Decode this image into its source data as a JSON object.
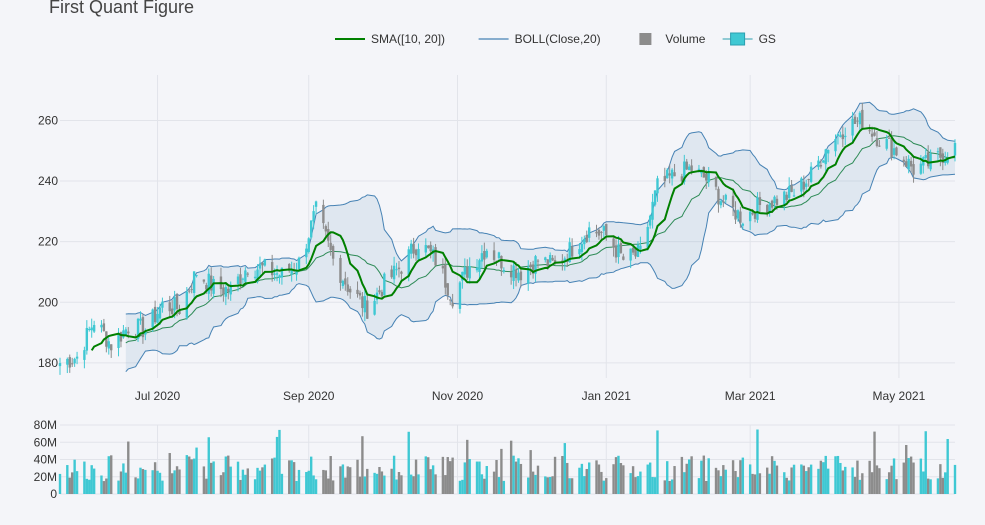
{
  "page": {
    "title": "First Quant Figure"
  },
  "legend": [
    {
      "label": "SMA([10, 20])",
      "color": "#008000",
      "kind": "line"
    },
    {
      "label": "BOLL(Close,20)",
      "color": "#4682b4",
      "kind": "line"
    },
    {
      "label": "Volume",
      "color": "#8c8c8c",
      "kind": "square"
    },
    {
      "label": "GS",
      "color": "#3fc8d3",
      "kind": "candle"
    }
  ],
  "chart_data": [
    {
      "type": "candlestick",
      "name": "GS",
      "colors": {
        "increasing": "#3fc8d3",
        "decreasing": "#8c8c8c",
        "sma": "#008000",
        "boll": "#4682b4",
        "band_fill": "rgba(70,130,180,0.12)"
      },
      "x_ticks": [
        "Jul 2020",
        "Sep 2020",
        "Nov 2020",
        "Jan 2021",
        "Mar 2021",
        "May 2021"
      ],
      "x_tick_dates": [
        "2020-07-01",
        "2020-09-01",
        "2020-11-01",
        "2021-01-01",
        "2021-03-01",
        "2021-05-01"
      ],
      "x_range": [
        "2020-05-22",
        "2021-05-24"
      ],
      "y_ticks": [
        180,
        200,
        220,
        240,
        260
      ],
      "y_range": [
        175,
        275
      ],
      "grid": true,
      "close_points": [
        [
          "2020-05-22",
          180
        ],
        [
          "2020-05-29",
          182
        ],
        [
          "2020-06-05",
          194
        ],
        [
          "2020-06-12",
          186
        ],
        [
          "2020-06-19",
          192
        ],
        [
          "2020-06-26",
          191
        ],
        [
          "2020-07-03",
          199
        ],
        [
          "2020-07-10",
          198
        ],
        [
          "2020-07-17",
          210
        ],
        [
          "2020-07-24",
          205
        ],
        [
          "2020-07-31",
          204
        ],
        [
          "2020-08-07",
          212
        ],
        [
          "2020-08-14",
          211
        ],
        [
          "2020-08-21",
          209
        ],
        [
          "2020-08-28",
          213
        ],
        [
          "2020-09-04",
          230
        ],
        [
          "2020-09-11",
          214
        ],
        [
          "2020-09-18",
          204
        ],
        [
          "2020-09-25",
          198
        ],
        [
          "2020-10-02",
          206
        ],
        [
          "2020-10-09",
          212
        ],
        [
          "2020-10-16",
          220
        ],
        [
          "2020-10-23",
          214
        ],
        [
          "2020-10-30",
          202
        ],
        [
          "2020-11-06",
          212
        ],
        [
          "2020-11-13",
          218
        ],
        [
          "2020-11-20",
          213
        ],
        [
          "2020-11-27",
          210
        ],
        [
          "2020-12-04",
          214
        ],
        [
          "2020-12-11",
          212
        ],
        [
          "2020-12-18",
          218
        ],
        [
          "2020-12-25",
          224
        ],
        [
          "2021-01-01",
          222
        ],
        [
          "2021-01-08",
          214
        ],
        [
          "2021-01-15",
          216
        ],
        [
          "2021-01-22",
          238
        ],
        [
          "2021-01-29",
          242
        ],
        [
          "2021-02-05",
          244
        ],
        [
          "2021-02-12",
          240
        ],
        [
          "2021-02-19",
          232
        ],
        [
          "2021-02-26",
          228
        ],
        [
          "2021-03-05",
          232
        ],
        [
          "2021-03-12",
          234
        ],
        [
          "2021-03-19",
          236
        ],
        [
          "2021-03-26",
          242
        ],
        [
          "2021-04-02",
          252
        ],
        [
          "2021-04-09",
          258
        ],
        [
          "2021-04-16",
          260
        ],
        [
          "2021-04-23",
          254
        ],
        [
          "2021-04-30",
          250
        ],
        [
          "2021-05-07",
          244
        ],
        [
          "2021-05-14",
          246
        ],
        [
          "2021-05-21",
          250
        ],
        [
          "2021-05-24",
          251
        ]
      ],
      "volume_y_ticks": [
        "0",
        "20M",
        "40M",
        "60M",
        "80M"
      ],
      "volume_range": [
        0,
        80000000
      ]
    }
  ]
}
